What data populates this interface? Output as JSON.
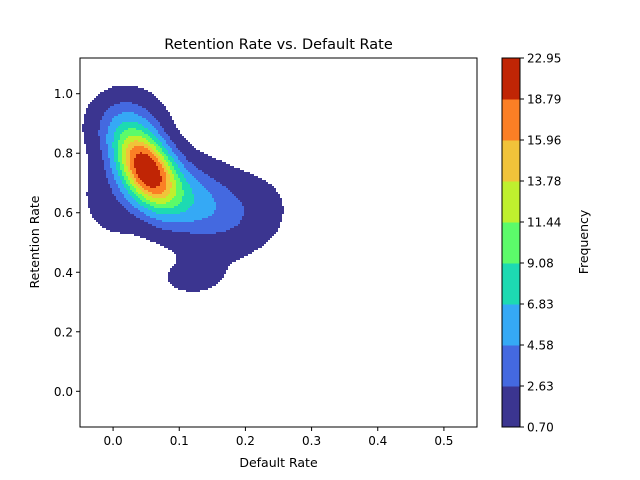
{
  "chart_data": {
    "type": "contourf",
    "title": "Retention Rate vs. Default Rate",
    "xlabel": "Default Rate",
    "ylabel": "Retention Rate",
    "xlim": [
      -0.05,
      0.55
    ],
    "ylim": [
      -0.12,
      1.12
    ],
    "xticks": [
      0.0,
      0.1,
      0.2,
      0.3,
      0.4,
      0.5
    ],
    "xtick_labels": [
      "0.0",
      "0.1",
      "0.2",
      "0.3",
      "0.4",
      "0.5"
    ],
    "yticks": [
      0.0,
      0.2,
      0.4,
      0.6,
      0.8,
      1.0
    ],
    "ytick_labels": [
      "0.0",
      "0.2",
      "0.4",
      "0.6",
      "0.8",
      "1.0"
    ],
    "colorbar": {
      "label": "Frequency",
      "levels": [
        0.7,
        2.63,
        4.58,
        6.83,
        9.08,
        11.44,
        13.78,
        15.96,
        18.79,
        22.95
      ],
      "level_labels": [
        "0.70",
        "2.63",
        "4.58",
        "6.83",
        "9.08",
        "11.44",
        "13.78",
        "15.96",
        "18.79",
        "22.95"
      ],
      "colors": [
        "#3b3590",
        "#4469e0",
        "#35a9f5",
        "#1ddab2",
        "#5cfb6a",
        "#bff02e",
        "#f1c33a",
        "#fb7f25",
        "#c02505"
      ]
    },
    "density_peak": {
      "x": 0.05,
      "y": 0.75,
      "value": 22.95
    },
    "grid": false
  }
}
